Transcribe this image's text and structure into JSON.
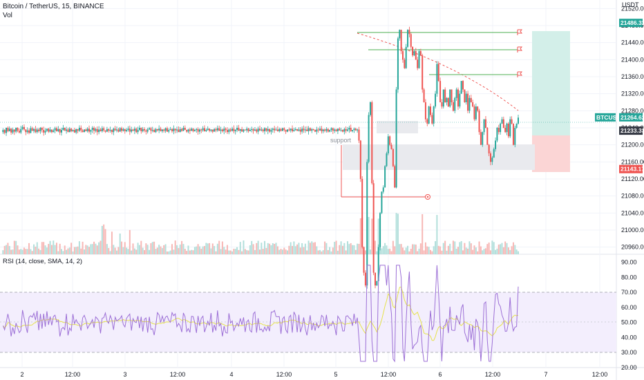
{
  "header": {
    "symbol_line": "Bitcoin / TetherUS, 15, BINANCE",
    "volume_label": "Vol"
  },
  "price_axis": {
    "currency": "USDT",
    "ticks": [
      "21520.00",
      "21480.00",
      "21440.00",
      "21400.00",
      "21360.00",
      "21320.00",
      "21280.00",
      "21240.00",
      "21200.00",
      "21160.00",
      "21120.00",
      "21080.00",
      "21040.00",
      "21000.00",
      "20960.00"
    ]
  },
  "price_tags": [
    {
      "label": "",
      "value": "21486.32",
      "color": "#26a69a"
    },
    {
      "label": "BTCUSDT",
      "value": "21264.62",
      "color": "#26a69a"
    },
    {
      "label": "",
      "value": "21233.33",
      "color": "#363a45"
    },
    {
      "label": "",
      "value": "21143.17",
      "color": "#ef5350"
    }
  ],
  "annotations": {
    "support_text": "support"
  },
  "rsi": {
    "header": "RSI (14, close, SMA, 14, 2)",
    "ticks": [
      "90.00",
      "80.00",
      "70.00",
      "60.00",
      "50.00",
      "40.00",
      "30.00",
      "20.00"
    ],
    "upper_band": 70,
    "lower_band": 30
  },
  "time_axis": {
    "labels": [
      "2",
      "12:00",
      "3",
      "12:00",
      "4",
      "12:00",
      "5",
      "12:00",
      "6",
      "12:00",
      "7",
      "12:00"
    ]
  },
  "colors": {
    "up": "#26a69a",
    "down": "#ef5350",
    "volume_up": "#b2dfdb",
    "volume_down": "#f7b7b5",
    "rsi_line": "#9c6fd6",
    "rsi_ma": "#e6e24a",
    "rsi_band_fill": "#f3eefd",
    "target_zone": "#d3efe9",
    "stop_zone": "#fbd5d5",
    "support_zone": "#e9eaee"
  },
  "chart_data": {
    "type": "candlestick",
    "symbol": "BTCUSDT",
    "interval": "15",
    "exchange": "BINANCE",
    "ylim": [
      20940,
      21540
    ],
    "last_price": 21264.62,
    "long_position": {
      "target": 21486.32,
      "entry": 21233.33,
      "stop": 21143.17
    },
    "horizontal_rays": [
      21486.32,
      21444.0,
      21377.0
    ],
    "stop_line": 21084.0,
    "rsi_range": [
      20,
      90
    ],
    "price_path": [
      21230,
      21235,
      21228,
      21240,
      21232,
      21238,
      21229,
      21236,
      21231,
      21240,
      21233,
      21229,
      21237,
      21242,
      21236,
      21230,
      21234,
      21228,
      21239,
      21233,
      21237,
      21230,
      21236,
      21232,
      21240,
      21235,
      21229,
      21233,
      21238,
      21231,
      21236,
      21230,
      21234,
      21239,
      21232,
      21237,
      21229,
      21235,
      21240,
      21233,
      21236,
      21230,
      21238,
      21232,
      21235,
      21229,
      21237,
      21233,
      21240,
      21234,
      21230,
      21236,
      21232,
      21238,
      21231,
      21235,
      21240,
      21233,
      21237,
      21230,
      21236,
      21232,
      21239,
      21234,
      21231,
      21237,
      21233,
      21235,
      21230,
      21238,
      21234,
      21236,
      21231,
      21239,
      21233,
      21237,
      21232,
      21235,
      21238,
      21231,
      21236,
      21233,
      21238,
      21230,
      21235,
      21240,
      21232,
      21237,
      21234,
      21231,
      21236,
      21239,
      21233,
      21235,
      21230,
      21237,
      21234,
      21238,
      21232,
      21236,
      21233,
      21239,
      21231,
      21235,
      21237,
      21232,
      21238,
      21234,
      21236,
      21230,
      21237,
      21233,
      21240,
      21235,
      21231,
      21236,
      21233,
      21238,
      21232,
      21235,
      21237,
      21231,
      21236,
      21234,
      21239,
      21232,
      21235,
      21238,
      21233,
      21236,
      21231,
      21237,
      21234,
      21239,
      21233,
      21236,
      21232,
      21238,
      21235,
      21230,
      21236,
      21233,
      21238,
      21232,
      21235,
      21240,
      21233,
      21237,
      21231,
      21236,
      21234,
      21238,
      21232,
      21235,
      21237,
      21233,
      21236,
      21231,
      21238,
      21234,
      21236,
      21232,
      21239,
      21233,
      21237,
      21231,
      21235,
      21238,
      21234,
      21236,
      21232,
      21237,
      21233,
      21239,
      21235,
      21231,
      21236,
      21234,
      21238,
      21232,
      21235,
      21237,
      21233,
      21236,
      21231,
      21238,
      21234,
      21236,
      21232,
      21239,
      21233,
      21237,
      21235,
      21231,
      21236,
      21234,
      21238,
      21232,
      21236,
      21233,
      21237,
      21231,
      21235,
      21239,
      21233,
      21236,
      21232,
      21238,
      21234,
      21235,
      21231,
      21237,
      21233,
      21236,
      21240,
      21232,
      21235,
      21238,
      21234,
      21236,
      21210,
      21120,
      20960,
      20900,
      20870,
      21160,
      21270,
      21300,
      21110,
      20900,
      20870,
      20880,
      20960,
      21040,
      21090,
      21100,
      21150,
      21180,
      21220,
      21200,
      21190,
      21150,
      21100,
      21330,
      21450,
      21470,
      21420,
      21400,
      21380,
      21430,
      21470,
      21460,
      21430,
      21410,
      21420,
      21400,
      21380,
      21420,
      21410,
      21330,
      21300,
      21260,
      21250,
      21290,
      21270,
      21250,
      21290,
      21320,
      21390,
      21350,
      21300,
      21290,
      21330,
      21300,
      21310,
      21290,
      21330,
      21300,
      21280,
      21310,
      21330,
      21290,
      21320,
      21350,
      21330,
      21300,
      21320,
      21280,
      21310,
      21300,
      21290,
      21260,
      21290,
      21280,
      21230,
      21200,
      21230,
      21260,
      21240,
      21200,
      21180,
      21160,
      21170,
      21190,
      21210,
      21240,
      21230,
      21250,
      21260,
      21240,
      21230,
      21250,
      21220,
      21260,
      21250,
      21200,
      21240,
      21250,
      21264
    ]
  }
}
